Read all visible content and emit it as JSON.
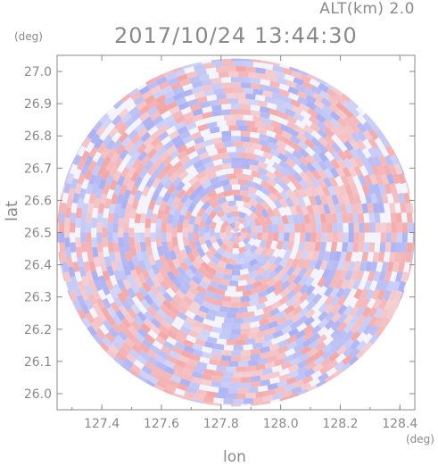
{
  "header": {
    "altitude_label": "ALT(km) 2.0",
    "timestamp": "2017/10/24 13:44:30"
  },
  "chart_data": {
    "type": "heatmap",
    "title": "2017/10/24 13:44:30",
    "subtitle": "ALT(km) 2.0",
    "xlabel": "lon",
    "ylabel": "lat",
    "x_unit": "(deg)",
    "y_unit": "(deg)",
    "xlim": [
      127.25,
      128.45
    ],
    "ylim": [
      25.95,
      27.05
    ],
    "x_ticks": [
      127.4,
      127.6,
      127.8,
      128.0,
      128.2,
      128.4
    ],
    "x_tick_labels": [
      "127.4",
      "127.6",
      "127.8",
      "128.0",
      "128.2",
      "128.4"
    ],
    "y_ticks": [
      26.0,
      26.1,
      26.2,
      26.3,
      26.4,
      26.5,
      26.6,
      26.7,
      26.8,
      26.9,
      27.0
    ],
    "y_tick_labels": [
      "26.0",
      "26.1",
      "26.2",
      "26.3",
      "26.4",
      "26.5",
      "26.6",
      "26.7",
      "26.8",
      "26.9",
      "27.0"
    ],
    "domain_center": {
      "lon": 127.85,
      "lat": 26.5
    },
    "domain_radius_deg": {
      "lon": 0.6,
      "lat": 0.54
    },
    "grid": false,
    "colors": {
      "positive": "#f4a6a6",
      "negative": "#aab0f2",
      "neutral": "#f4f4fc",
      "axis": "#8a8a8a"
    }
  }
}
